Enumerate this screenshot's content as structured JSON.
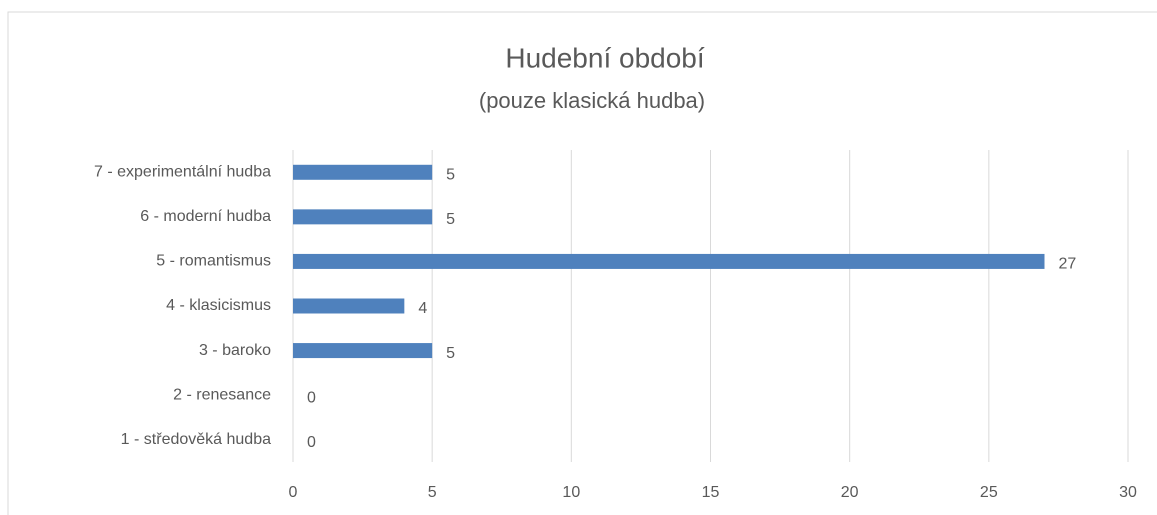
{
  "chart_data": {
    "type": "bar",
    "orientation": "horizontal",
    "title": "Hudební období",
    "subtitle": "(pouze klasická hudba)",
    "categories": [
      "1 - středověká hudba",
      "2 - renesance",
      "3 - baroko",
      "4 - klasicismus",
      "5 - romantismus",
      "6 - moderní hudba",
      "7 - experimentální hudba"
    ],
    "values": [
      0,
      0,
      5,
      4,
      27,
      5,
      5
    ],
    "color": "#4f81bd",
    "xlim": [
      0,
      30
    ],
    "xticks": [
      0,
      5,
      10,
      15,
      20,
      25,
      30
    ],
    "grid": true
  }
}
